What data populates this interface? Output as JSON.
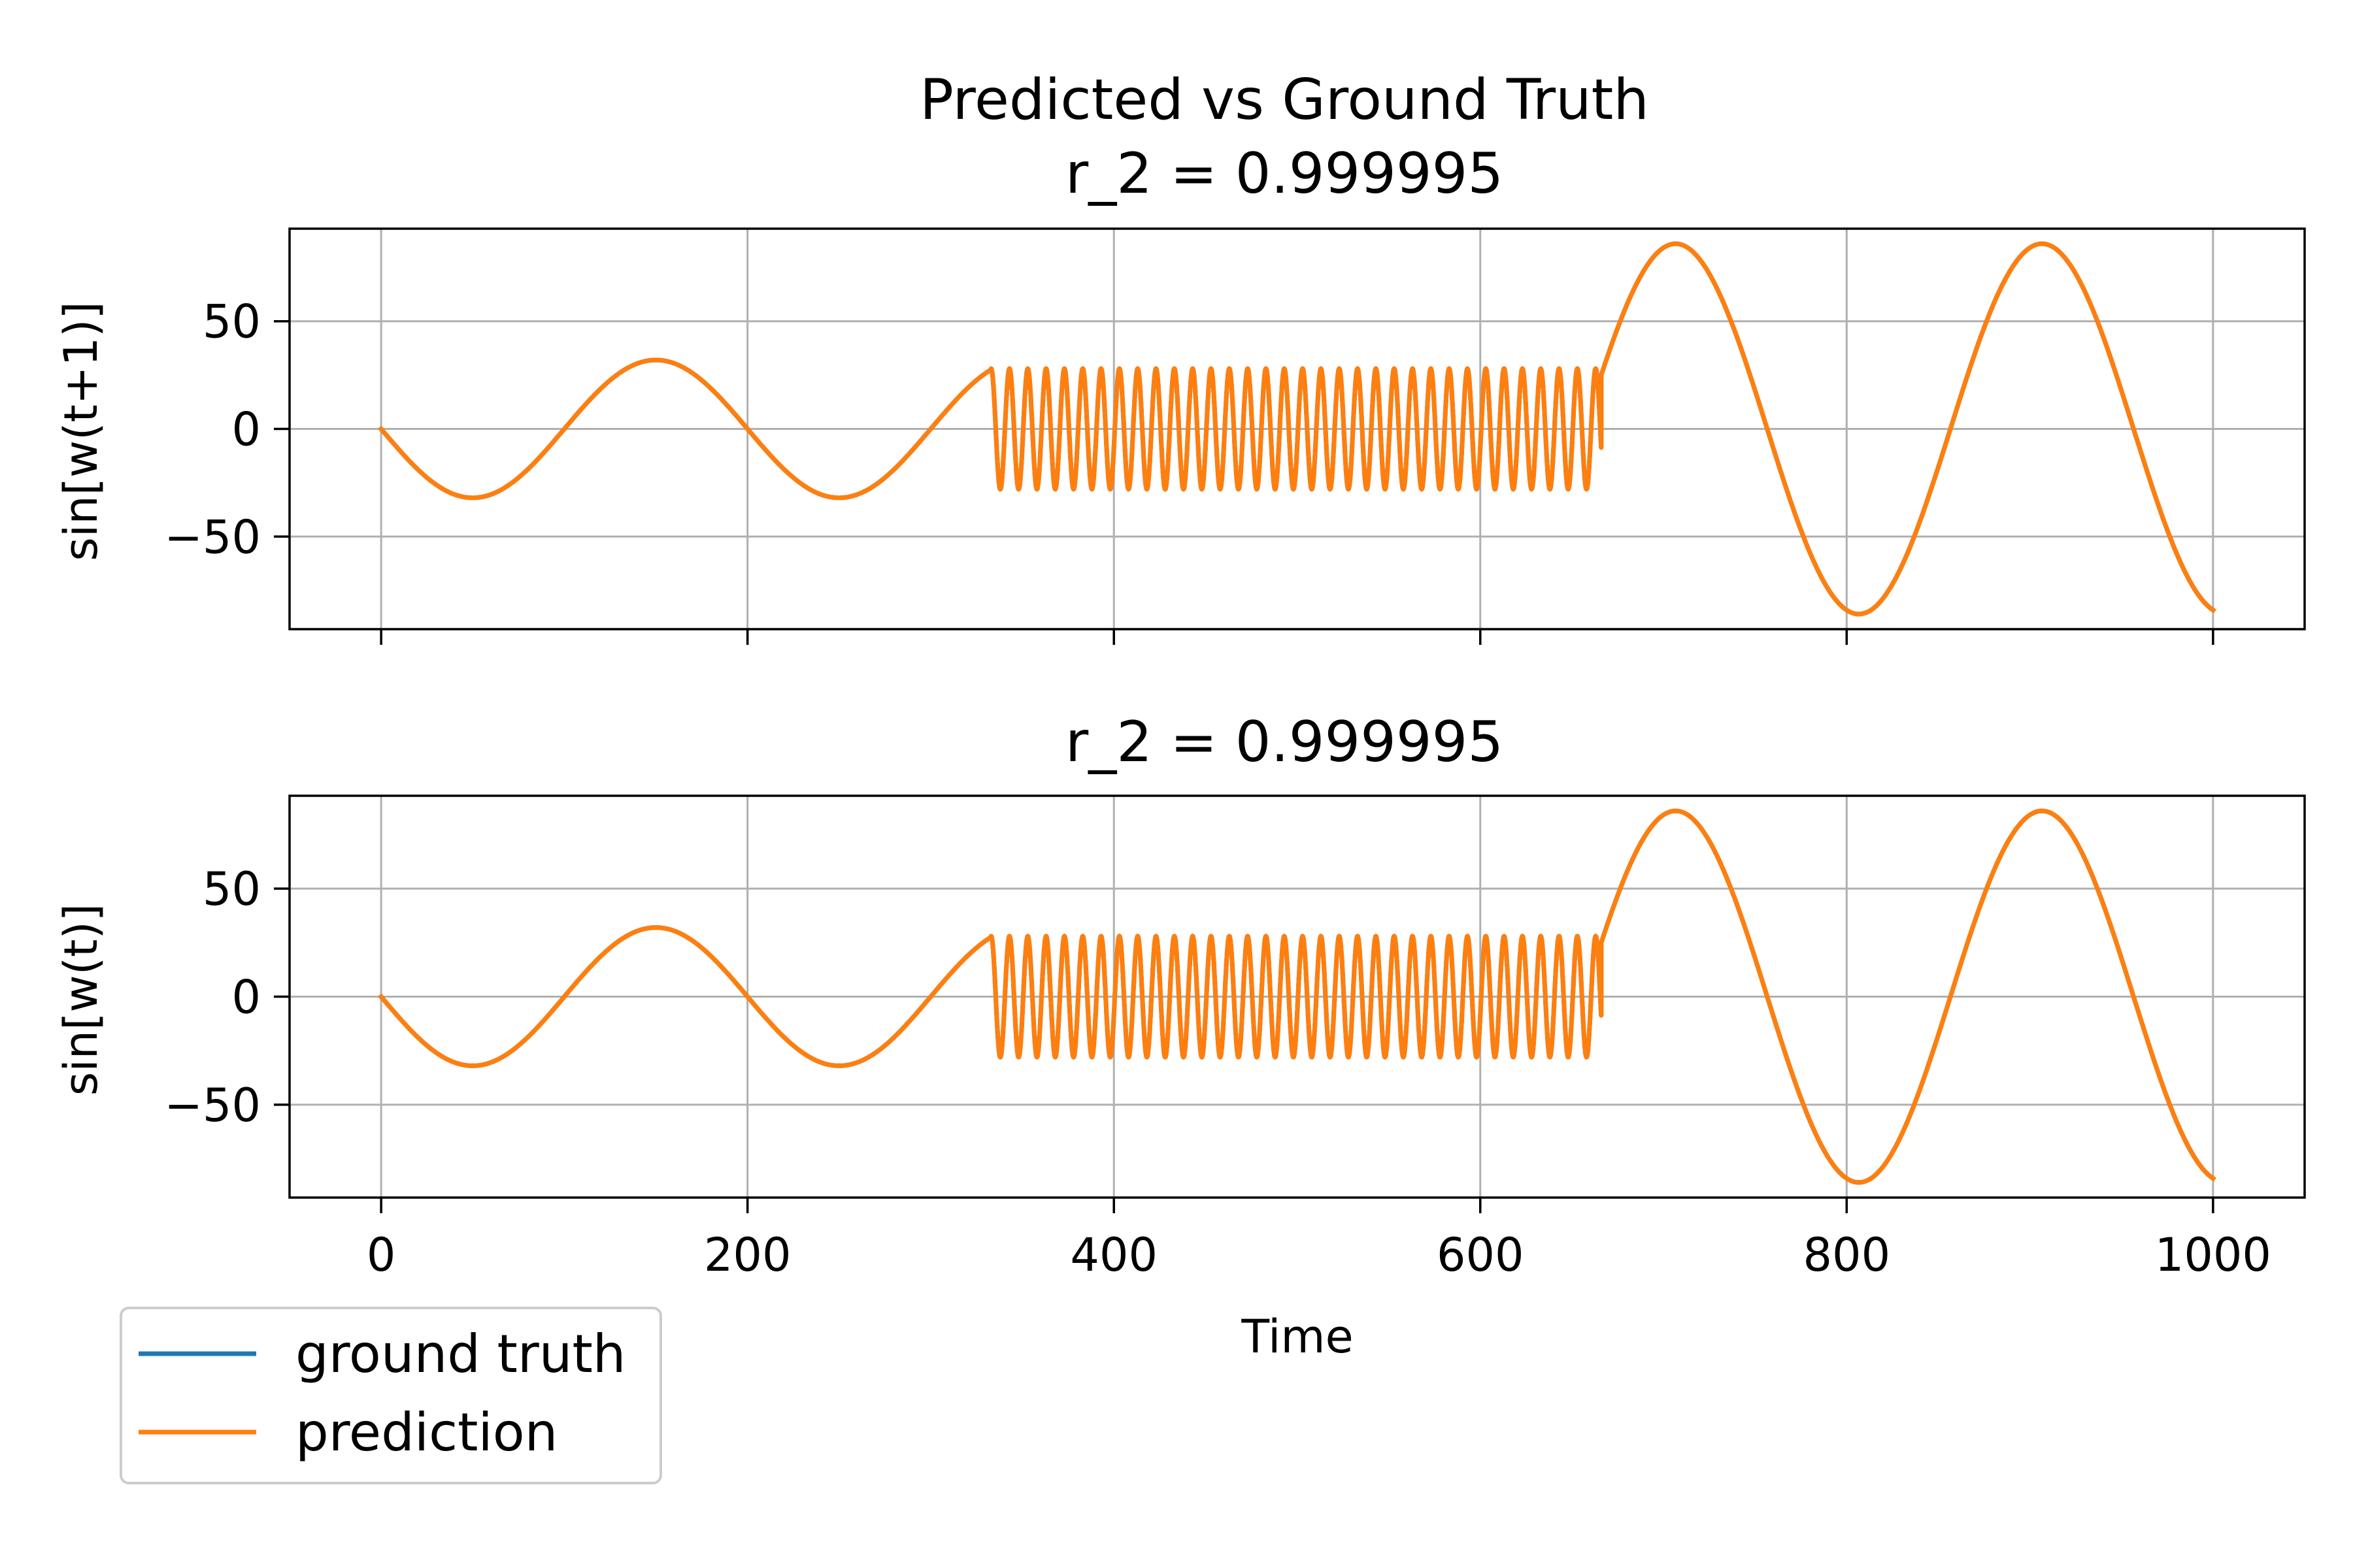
{
  "figure": {
    "suptitle": "Predicted vs Ground Truth",
    "xlabel": "Time"
  },
  "legend": {
    "placement": "bottom-left",
    "entries": [
      {
        "label": "ground truth",
        "color": "#1f77b4"
      },
      {
        "label": "prediction",
        "color": "#ff7f0e"
      }
    ]
  },
  "chart_data": [
    {
      "type": "line",
      "title": "r_2 = 0.999995",
      "xlabel": "",
      "ylabel": "sin[w(t+1)]",
      "xlim": [
        -50,
        1050
      ],
      "ylim": [
        -93,
        93
      ],
      "xticks": [
        0,
        200,
        400,
        600,
        800,
        1000
      ],
      "xtick_labels": [],
      "yticks": [
        -50,
        0,
        50
      ],
      "ytick_labels": [
        "−50",
        "0",
        "50"
      ],
      "grid": true,
      "segments": [
        {
          "x": [
            0,
            333
          ],
          "amplitude": 32,
          "period": 200,
          "phase": "negative-sine"
        },
        {
          "x": [
            333,
            666
          ],
          "amplitude": 28,
          "period": 10,
          "phase": "from-peak"
        },
        {
          "x": [
            666,
            1000
          ],
          "amplitude": 86,
          "period": 200,
          "phase": "rising"
        }
      ],
      "series": [
        {
          "name": "ground truth",
          "color": "#1f77b4"
        },
        {
          "name": "prediction",
          "color": "#ff7f0e"
        }
      ]
    },
    {
      "type": "line",
      "title": "r_2 = 0.999995",
      "xlabel": "Time",
      "ylabel": "sin[w(t)]",
      "xlim": [
        -50,
        1050
      ],
      "ylim": [
        -93,
        93
      ],
      "xticks": [
        0,
        200,
        400,
        600,
        800,
        1000
      ],
      "xtick_labels": [
        "0",
        "200",
        "400",
        "600",
        "800",
        "1000"
      ],
      "yticks": [
        -50,
        0,
        50
      ],
      "ytick_labels": [
        "−50",
        "0",
        "50"
      ],
      "grid": true,
      "segments": [
        {
          "x": [
            0,
            333
          ],
          "amplitude": 32,
          "period": 200,
          "phase": "negative-sine"
        },
        {
          "x": [
            333,
            666
          ],
          "amplitude": 28,
          "period": 10,
          "phase": "from-peak"
        },
        {
          "x": [
            666,
            1000
          ],
          "amplitude": 86,
          "period": 200,
          "phase": "rising"
        }
      ],
      "series": [
        {
          "name": "ground truth",
          "color": "#1f77b4"
        },
        {
          "name": "prediction",
          "color": "#ff7f0e"
        }
      ]
    }
  ]
}
